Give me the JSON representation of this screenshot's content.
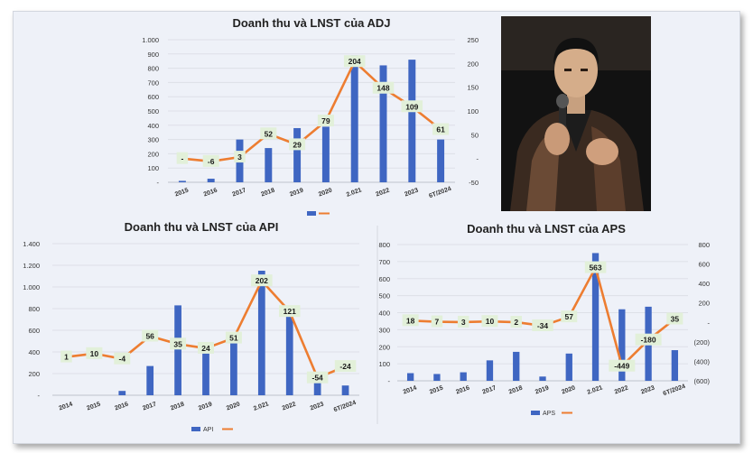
{
  "chart_data": [
    {
      "type": "bar",
      "title": "Doanh thu và LNST của ADJ",
      "categories": [
        "2015",
        "2016",
        "2017",
        "2018",
        "2019",
        "2020",
        "2.021",
        "2022",
        "2023",
        "6T/2024"
      ],
      "y_ticks": [
        "1.000",
        "900",
        "800",
        "700",
        "600",
        "500",
        "400",
        "300",
        "200",
        "100",
        "-"
      ],
      "y2_ticks": [
        "250",
        "200",
        "150",
        "100",
        "50",
        "-",
        "-50"
      ],
      "ylim": [
        0,
        1000
      ],
      "y2lim": [
        -50,
        250
      ],
      "series": [
        {
          "type": "bar",
          "values": [
            10,
            25,
            300,
            240,
            380,
            390,
            890,
            820,
            860,
            300
          ]
        },
        {
          "type": "line",
          "values": [
            0,
            -6,
            3,
            52,
            29,
            79,
            204,
            148,
            109,
            61
          ],
          "labels": [
            "-",
            "-6",
            "3",
            "52",
            "29",
            "79",
            "204",
            "148",
            "109",
            "61"
          ]
        }
      ],
      "legend": "bottom",
      "bar_color": "#3f66c2",
      "line_color": "#ed7d31"
    },
    {
      "type": "bar",
      "title": "Doanh thu và LNST của API",
      "categories": [
        "2014",
        "2015",
        "2016",
        "2017",
        "2018",
        "2019",
        "2020",
        "2.021",
        "2022",
        "2023",
        "6T/2024"
      ],
      "y_ticks": [
        "1.400",
        "1.200",
        "1.000",
        "800",
        "600",
        "400",
        "200",
        "-"
      ],
      "ylim": [
        0,
        1400
      ],
      "y2lim": [
        -100,
        300
      ],
      "series": [
        {
          "name": "API",
          "type": "bar",
          "values": [
            0,
            0,
            40,
            270,
            830,
            440,
            490,
            1150,
            780,
            130,
            90
          ]
        },
        {
          "type": "line",
          "values": [
            1,
            10,
            -4,
            56,
            35,
            24,
            51,
            202,
            121,
            -54,
            -24
          ],
          "labels": [
            "1",
            "10",
            "-4",
            "56",
            "35",
            "24",
            "51",
            "202",
            "121",
            "-54",
            "-24"
          ]
        }
      ],
      "legend": "bottom",
      "bar_color": "#3f66c2",
      "line_color": "#ed7d31"
    },
    {
      "type": "bar",
      "title": "Doanh thu và LNST của APS",
      "categories": [
        "2014",
        "2015",
        "2016",
        "2017",
        "2018",
        "2019",
        "2020",
        "2.021",
        "2022",
        "2023",
        "6T/2024"
      ],
      "y_ticks": [
        "800",
        "700",
        "600",
        "500",
        "400",
        "300",
        "200",
        "100",
        "-"
      ],
      "y2_ticks": [
        "800",
        "600",
        "400",
        "200",
        "-",
        "(200)",
        "(400)",
        "(600)"
      ],
      "ylim": [
        0,
        800
      ],
      "y2lim": [
        -600,
        800
      ],
      "series": [
        {
          "name": "APS",
          "type": "bar",
          "values": [
            45,
            40,
            50,
            120,
            170,
            25,
            160,
            750,
            420,
            435,
            180
          ]
        },
        {
          "type": "line",
          "values": [
            18,
            7,
            3,
            10,
            2,
            -34,
            57,
            563,
            -449,
            -180,
            35
          ],
          "labels": [
            "18",
            "7",
            "3",
            "10",
            "2",
            "-34",
            "57",
            "563",
            "-449",
            "-180",
            "35"
          ]
        }
      ],
      "legend": "bottom",
      "bar_color": "#3f66c2",
      "line_color": "#ed7d31"
    }
  ]
}
